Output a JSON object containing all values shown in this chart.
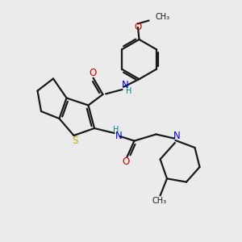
{
  "background_color": "#ebebeb",
  "bond_color": "#1a1a1a",
  "S_color": "#b8b800",
  "N_color": "#0000cc",
  "O_color": "#cc0000",
  "H_color": "#008080",
  "figsize": [
    3.0,
    3.0
  ],
  "dpi": 100,
  "xlim": [
    0,
    10
  ],
  "ylim": [
    0,
    10
  ]
}
